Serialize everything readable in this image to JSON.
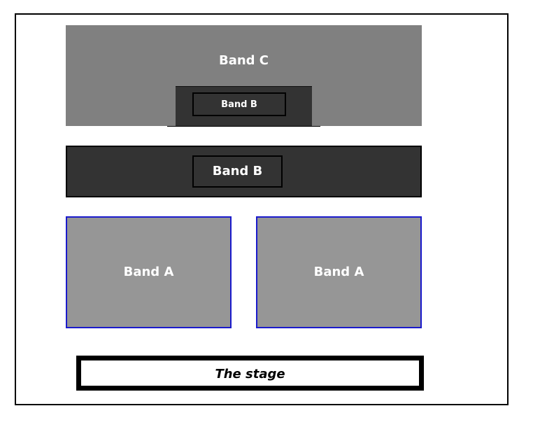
{
  "diagram": {
    "band_c": {
      "label": "Band C",
      "color": "#808080"
    },
    "band_b_small": {
      "label": "Band B",
      "color": "#333333"
    },
    "band_b": {
      "label": "Band B",
      "color": "#333333"
    },
    "band_a_left": {
      "label": "Band A",
      "color": "#969696",
      "border_color": "#1a1acc"
    },
    "band_a_right": {
      "label": "Band A",
      "color": "#969696",
      "border_color": "#1a1acc"
    },
    "stage": {
      "label": "The stage"
    }
  }
}
